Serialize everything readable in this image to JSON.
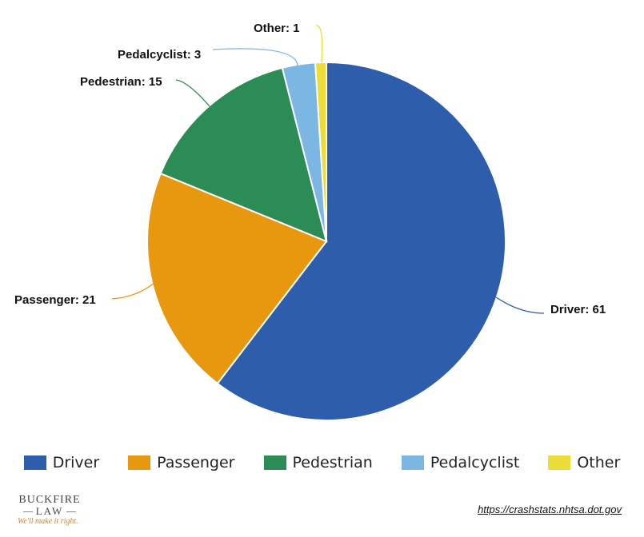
{
  "chart_data": {
    "type": "pie",
    "slices": [
      {
        "name": "Driver",
        "value": 61,
        "label": "Driver: 61",
        "color": "#2d5dab"
      },
      {
        "name": "Passenger",
        "value": 21,
        "label": "Passenger: 21",
        "color": "#e8980f"
      },
      {
        "name": "Pedestrian",
        "value": 15,
        "label": "Pedestrian: 15",
        "color": "#2b8c55"
      },
      {
        "name": "Pedalcyclist",
        "value": 3,
        "label": "Pedalcyclist: 3",
        "color": "#7cb6e2"
      },
      {
        "name": "Other",
        "value": 1,
        "label": "Other: 1",
        "color": "#ebdc3a"
      }
    ],
    "legend": {
      "position": "bottom",
      "items": [
        "Driver",
        "Passenger",
        "Pedestrian",
        "Pedalcyclist",
        "Other"
      ]
    }
  },
  "logo": {
    "line1": "BUCKFIRE",
    "line2": "LAW",
    "tagline": "We'll make it right."
  },
  "source": {
    "text": "https://crashstats.nhtsa.dot.gov"
  }
}
